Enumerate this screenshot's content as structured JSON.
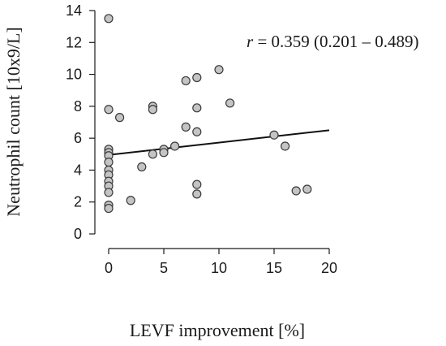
{
  "chart_data": {
    "type": "scatter",
    "xlabel": "LEVF improvement [%]",
    "ylabel": "Neutrophil count [10x9/L]",
    "xlim": [
      0,
      20
    ],
    "ylim": [
      0,
      14
    ],
    "xticks": [
      0,
      5,
      10,
      15,
      20
    ],
    "yticks": [
      0,
      2,
      4,
      6,
      8,
      10,
      12,
      14
    ],
    "grid": false,
    "annotation": {
      "r_symbol": "r",
      "text": " = 0.359 (0.201 – 0.489)"
    },
    "fit_line": {
      "x": [
        0,
        20
      ],
      "y": [
        4.95,
        6.5
      ]
    },
    "series": [
      {
        "points": [
          [
            0,
            13.5
          ],
          [
            0,
            7.8
          ],
          [
            0,
            5.3
          ],
          [
            0,
            5.1
          ],
          [
            0,
            4.9
          ],
          [
            0,
            4.5
          ],
          [
            0,
            4.0
          ],
          [
            0,
            3.7
          ],
          [
            0,
            3.3
          ],
          [
            0,
            3.0
          ],
          [
            0,
            2.6
          ],
          [
            0,
            1.8
          ],
          [
            0,
            1.6
          ],
          [
            1,
            7.3
          ],
          [
            2,
            2.1
          ],
          [
            3,
            4.2
          ],
          [
            4,
            8.0
          ],
          [
            4,
            7.8
          ],
          [
            4,
            5.0
          ],
          [
            5,
            5.3
          ],
          [
            5,
            5.1
          ],
          [
            6,
            5.5
          ],
          [
            7,
            9.6
          ],
          [
            7,
            6.7
          ],
          [
            8,
            9.8
          ],
          [
            8,
            7.9
          ],
          [
            8,
            6.4
          ],
          [
            8,
            3.1
          ],
          [
            8,
            2.5
          ],
          [
            10,
            10.3
          ],
          [
            11,
            8.2
          ],
          [
            15,
            6.2
          ],
          [
            16,
            5.5
          ],
          [
            17,
            2.7
          ],
          [
            18,
            2.8
          ]
        ]
      }
    ]
  }
}
